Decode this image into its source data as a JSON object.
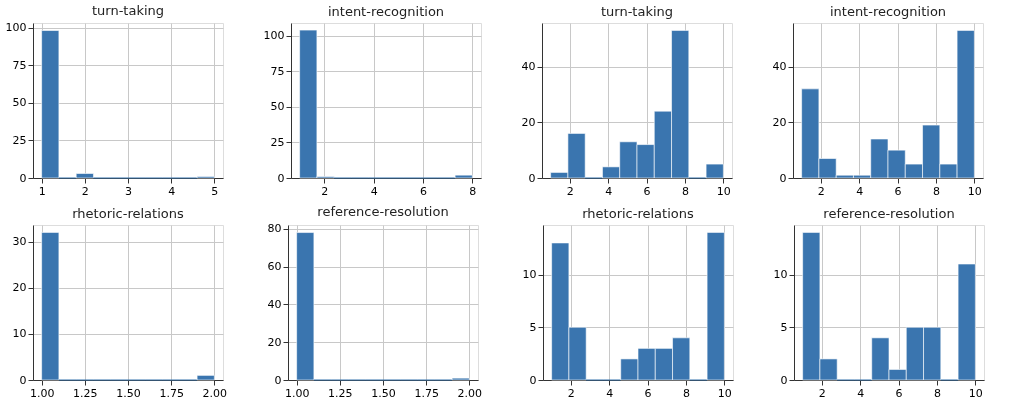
{
  "chart_data": [
    {
      "type": "histogram",
      "title": "turn-taking",
      "bins": [
        1,
        1.4,
        1.8,
        2.2,
        2.6,
        3,
        3.4,
        3.8,
        4.2,
        4.6,
        5
      ],
      "values": [
        98,
        0,
        3,
        0,
        0,
        0,
        0,
        0,
        0,
        1
      ],
      "color": "#3a75af",
      "xlim": [
        0.8,
        5.2
      ],
      "ylim": [
        0,
        103
      ],
      "xticks": [
        1,
        2,
        3,
        4,
        5
      ],
      "yticks": [
        0,
        25,
        50,
        75,
        100
      ],
      "grid": true
    },
    {
      "type": "histogram",
      "title": "intent-recognition",
      "bins": [
        1,
        1.7,
        2.4,
        3.1,
        3.8,
        4.5,
        5.2,
        5.9,
        6.6,
        7.3,
        8
      ],
      "values": [
        104,
        1,
        0,
        0,
        0,
        0,
        0,
        0,
        0,
        2
      ],
      "color": "#3a75af",
      "xlim": [
        0.65,
        8.35
      ],
      "ylim": [
        0,
        109
      ],
      "xticks": [
        2,
        4,
        6,
        8
      ],
      "yticks": [
        0,
        25,
        50,
        75,
        100
      ],
      "grid": true
    },
    {
      "type": "histogram",
      "title": "turn-taking",
      "bins": [
        1,
        1.9,
        2.8,
        3.7,
        4.6,
        5.5,
        6.4,
        7.3,
        8.2,
        9.1,
        10
      ],
      "values": [
        2,
        16,
        0,
        4,
        13,
        12,
        24,
        53,
        0,
        5
      ],
      "color": "#3a75af",
      "xlim": [
        0.55,
        10.45
      ],
      "ylim": [
        0,
        55.65
      ],
      "xticks": [
        2,
        4,
        6,
        8,
        10
      ],
      "yticks": [
        0,
        20,
        40
      ],
      "grid": true
    },
    {
      "type": "histogram",
      "title": "intent-recognition",
      "bins": [
        1,
        1.9,
        2.8,
        3.7,
        4.6,
        5.5,
        6.4,
        7.3,
        8.2,
        9.1,
        10
      ],
      "values": [
        32,
        7,
        1,
        1,
        14,
        10,
        5,
        19,
        5,
        53
      ],
      "color": "#3a75af",
      "xlim": [
        0.55,
        10.45
      ],
      "ylim": [
        0,
        55.65
      ],
      "xticks": [
        2,
        4,
        6,
        8,
        10
      ],
      "yticks": [
        0,
        20,
        40
      ],
      "grid": true
    },
    {
      "type": "histogram",
      "title": "rhetoric-relations",
      "bins": [
        1,
        1.1,
        1.2,
        1.3,
        1.4,
        1.5,
        1.6,
        1.7,
        1.8,
        1.9,
        2
      ],
      "values": [
        32,
        0,
        0,
        0,
        0,
        0,
        0,
        0,
        0,
        1
      ],
      "color": "#3a75af",
      "xlim": [
        0.95,
        2.05
      ],
      "ylim": [
        0,
        33.6
      ],
      "xticks": [
        {
          "value": 1,
          "label": "1.00"
        },
        {
          "value": 1.25,
          "label": "1.25"
        },
        {
          "value": 1.5,
          "label": "1.50"
        },
        {
          "value": 1.75,
          "label": "1.75"
        },
        {
          "value": 2,
          "label": "2.00"
        }
      ],
      "yticks": [
        0,
        10,
        20,
        30
      ],
      "grid": true
    },
    {
      "type": "histogram",
      "title": "reference-resolution",
      "bins": [
        1,
        1.1,
        1.2,
        1.3,
        1.4,
        1.5,
        1.6,
        1.7,
        1.8,
        1.9,
        2
      ],
      "values": [
        78,
        0,
        0,
        0,
        0,
        0,
        0,
        0,
        0,
        1
      ],
      "color": "#3a75af",
      "xlim": [
        0.95,
        2.05
      ],
      "ylim": [
        0,
        82
      ],
      "xticks": [
        {
          "value": 1,
          "label": "1.00"
        },
        {
          "value": 1.25,
          "label": "1.25"
        },
        {
          "value": 1.5,
          "label": "1.50"
        },
        {
          "value": 1.75,
          "label": "1.75"
        },
        {
          "value": 2,
          "label": "2.00"
        }
      ],
      "yticks": [
        0,
        20,
        40,
        60,
        80
      ],
      "grid": true
    },
    {
      "type": "histogram",
      "title": "rhetoric-relations",
      "bins": [
        1,
        1.9,
        2.8,
        3.7,
        4.6,
        5.5,
        6.4,
        7.3,
        8.2,
        9.1,
        10
      ],
      "values": [
        13,
        5,
        0,
        0,
        2,
        3,
        3,
        4,
        0,
        14
      ],
      "color": "#3a75af",
      "xlim": [
        0.55,
        10.45
      ],
      "ylim": [
        0,
        14.7
      ],
      "xticks": [
        2,
        4,
        6,
        8,
        10
      ],
      "yticks": [
        0,
        5,
        10
      ],
      "grid": true
    },
    {
      "type": "histogram",
      "title": "reference-resolution",
      "bins": [
        1,
        1.9,
        2.8,
        3.7,
        4.6,
        5.5,
        6.4,
        7.3,
        8.2,
        9.1,
        10
      ],
      "values": [
        14,
        2,
        0,
        0,
        4,
        1,
        5,
        5,
        0,
        11
      ],
      "color": "#3a75af",
      "xlim": [
        0.55,
        10.45
      ],
      "ylim": [
        0,
        14.7
      ],
      "xticks": [
        2,
        4,
        6,
        8,
        10
      ],
      "yticks": [
        0,
        5,
        10
      ],
      "grid": true
    }
  ]
}
